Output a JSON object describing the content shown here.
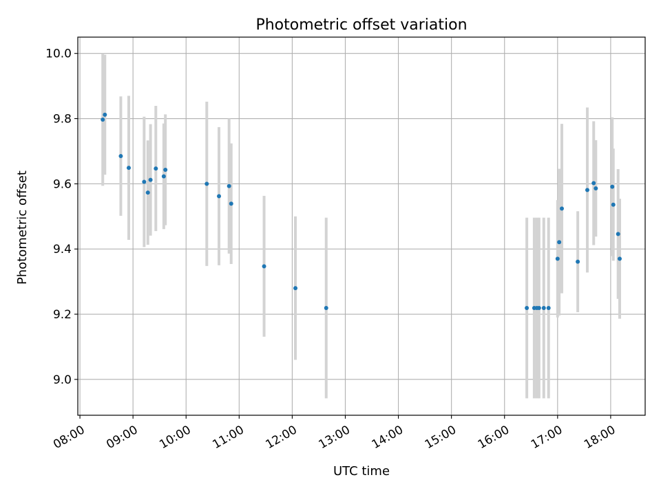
{
  "chart_data": {
    "type": "scatter",
    "title": "Photometric offset variation",
    "xlabel": "UTC time",
    "ylabel": "Photometric offset",
    "x_unit": "hours (UTC time of day)",
    "xlim": [
      7.96,
      18.65
    ],
    "ylim": [
      8.89,
      10.05
    ],
    "x_ticks": [
      {
        "value": 8,
        "label": "08:00"
      },
      {
        "value": 9,
        "label": "09:00"
      },
      {
        "value": 10,
        "label": "10:00"
      },
      {
        "value": 11,
        "label": "11:00"
      },
      {
        "value": 12,
        "label": "12:00"
      },
      {
        "value": 13,
        "label": "13:00"
      },
      {
        "value": 14,
        "label": "14:00"
      },
      {
        "value": 15,
        "label": "15:00"
      },
      {
        "value": 16,
        "label": "16:00"
      },
      {
        "value": 17,
        "label": "17:00"
      },
      {
        "value": 18,
        "label": "18:00"
      }
    ],
    "y_ticks": [
      {
        "value": 9.0,
        "label": "9.0"
      },
      {
        "value": 9.2,
        "label": "9.2"
      },
      {
        "value": 9.4,
        "label": "9.4"
      },
      {
        "value": 9.6,
        "label": "9.6"
      },
      {
        "value": 9.8,
        "label": "9.8"
      },
      {
        "value": 10.0,
        "label": "10.0"
      }
    ],
    "grid": true,
    "marker_color": "#1f77b4",
    "errorbar_color": "#d3d3d3",
    "points": [
      {
        "x": 8.43,
        "y": 9.797,
        "yerr": 0.203
      },
      {
        "x": 8.47,
        "y": 9.812,
        "yerr": 0.184
      },
      {
        "x": 8.77,
        "y": 9.685,
        "yerr": 0.183
      },
      {
        "x": 8.92,
        "y": 9.649,
        "yerr": 0.221
      },
      {
        "x": 9.21,
        "y": 9.606,
        "yerr": 0.2
      },
      {
        "x": 9.28,
        "y": 9.573,
        "yerr": 0.16
      },
      {
        "x": 9.33,
        "y": 9.612,
        "yerr": 0.171
      },
      {
        "x": 9.43,
        "y": 9.647,
        "yerr": 0.192
      },
      {
        "x": 9.58,
        "y": 9.623,
        "yerr": 0.162
      },
      {
        "x": 9.61,
        "y": 9.643,
        "yerr": 0.17
      },
      {
        "x": 10.39,
        "y": 9.6,
        "yerr": 0.252
      },
      {
        "x": 10.62,
        "y": 9.562,
        "yerr": 0.212
      },
      {
        "x": 10.81,
        "y": 9.593,
        "yerr": 0.207
      },
      {
        "x": 10.85,
        "y": 9.539,
        "yerr": 0.185
      },
      {
        "x": 11.47,
        "y": 9.347,
        "yerr": 0.216
      },
      {
        "x": 12.06,
        "y": 9.28,
        "yerr": 0.22
      },
      {
        "x": 12.64,
        "y": 9.219,
        "yerr": 0.277
      },
      {
        "x": 16.42,
        "y": 9.219,
        "yerr": 0.277
      },
      {
        "x": 16.56,
        "y": 9.219,
        "yerr": 0.277
      },
      {
        "x": 16.61,
        "y": 9.219,
        "yerr": 0.277
      },
      {
        "x": 16.65,
        "y": 9.219,
        "yerr": 0.277
      },
      {
        "x": 16.74,
        "y": 9.219,
        "yerr": 0.277
      },
      {
        "x": 16.83,
        "y": 9.219,
        "yerr": 0.277
      },
      {
        "x": 17.0,
        "y": 9.37,
        "yerr": 0.18
      },
      {
        "x": 17.03,
        "y": 9.421,
        "yerr": 0.225
      },
      {
        "x": 17.08,
        "y": 9.524,
        "yerr": 0.26
      },
      {
        "x": 17.38,
        "y": 9.361,
        "yerr": 0.155
      },
      {
        "x": 17.56,
        "y": 9.581,
        "yerr": 0.253
      },
      {
        "x": 17.68,
        "y": 9.602,
        "yerr": 0.19
      },
      {
        "x": 17.72,
        "y": 9.586,
        "yerr": 0.148
      },
      {
        "x": 18.03,
        "y": 9.591,
        "yerr": 0.213
      },
      {
        "x": 18.05,
        "y": 9.536,
        "yerr": 0.172
      },
      {
        "x": 18.14,
        "y": 9.446,
        "yerr": 0.199
      },
      {
        "x": 18.17,
        "y": 9.37,
        "yerr": 0.184
      }
    ]
  }
}
